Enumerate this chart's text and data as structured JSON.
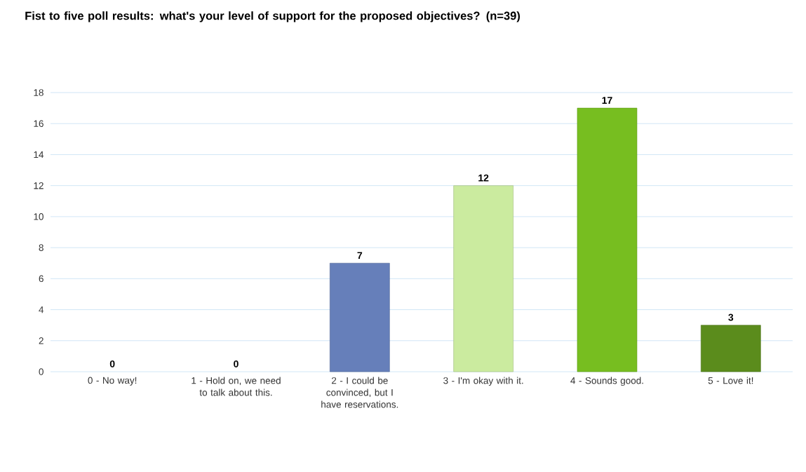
{
  "chart_data": {
    "type": "bar",
    "title": "Fist to five poll results: what's your level of support for the proposed objectives? (n=39)",
    "categories": [
      "0 - No way!",
      "1 - Hold on, we need to talk about this.",
      "2 - I could be convinced, but I have reservations.",
      "3 - I'm okay with it.",
      "4 - Sounds good.",
      "5 - Love it!"
    ],
    "values": [
      0,
      0,
      7,
      12,
      17,
      3
    ],
    "colors": [
      null,
      null,
      "#667fba",
      "#cbeb9f",
      "#77be20",
      "#5b8c1c"
    ],
    "ylim": [
      0,
      18
    ],
    "yticks": [
      0,
      2,
      4,
      6,
      8,
      10,
      12,
      14,
      16,
      18
    ],
    "grid": "y",
    "data_labels": true
  }
}
